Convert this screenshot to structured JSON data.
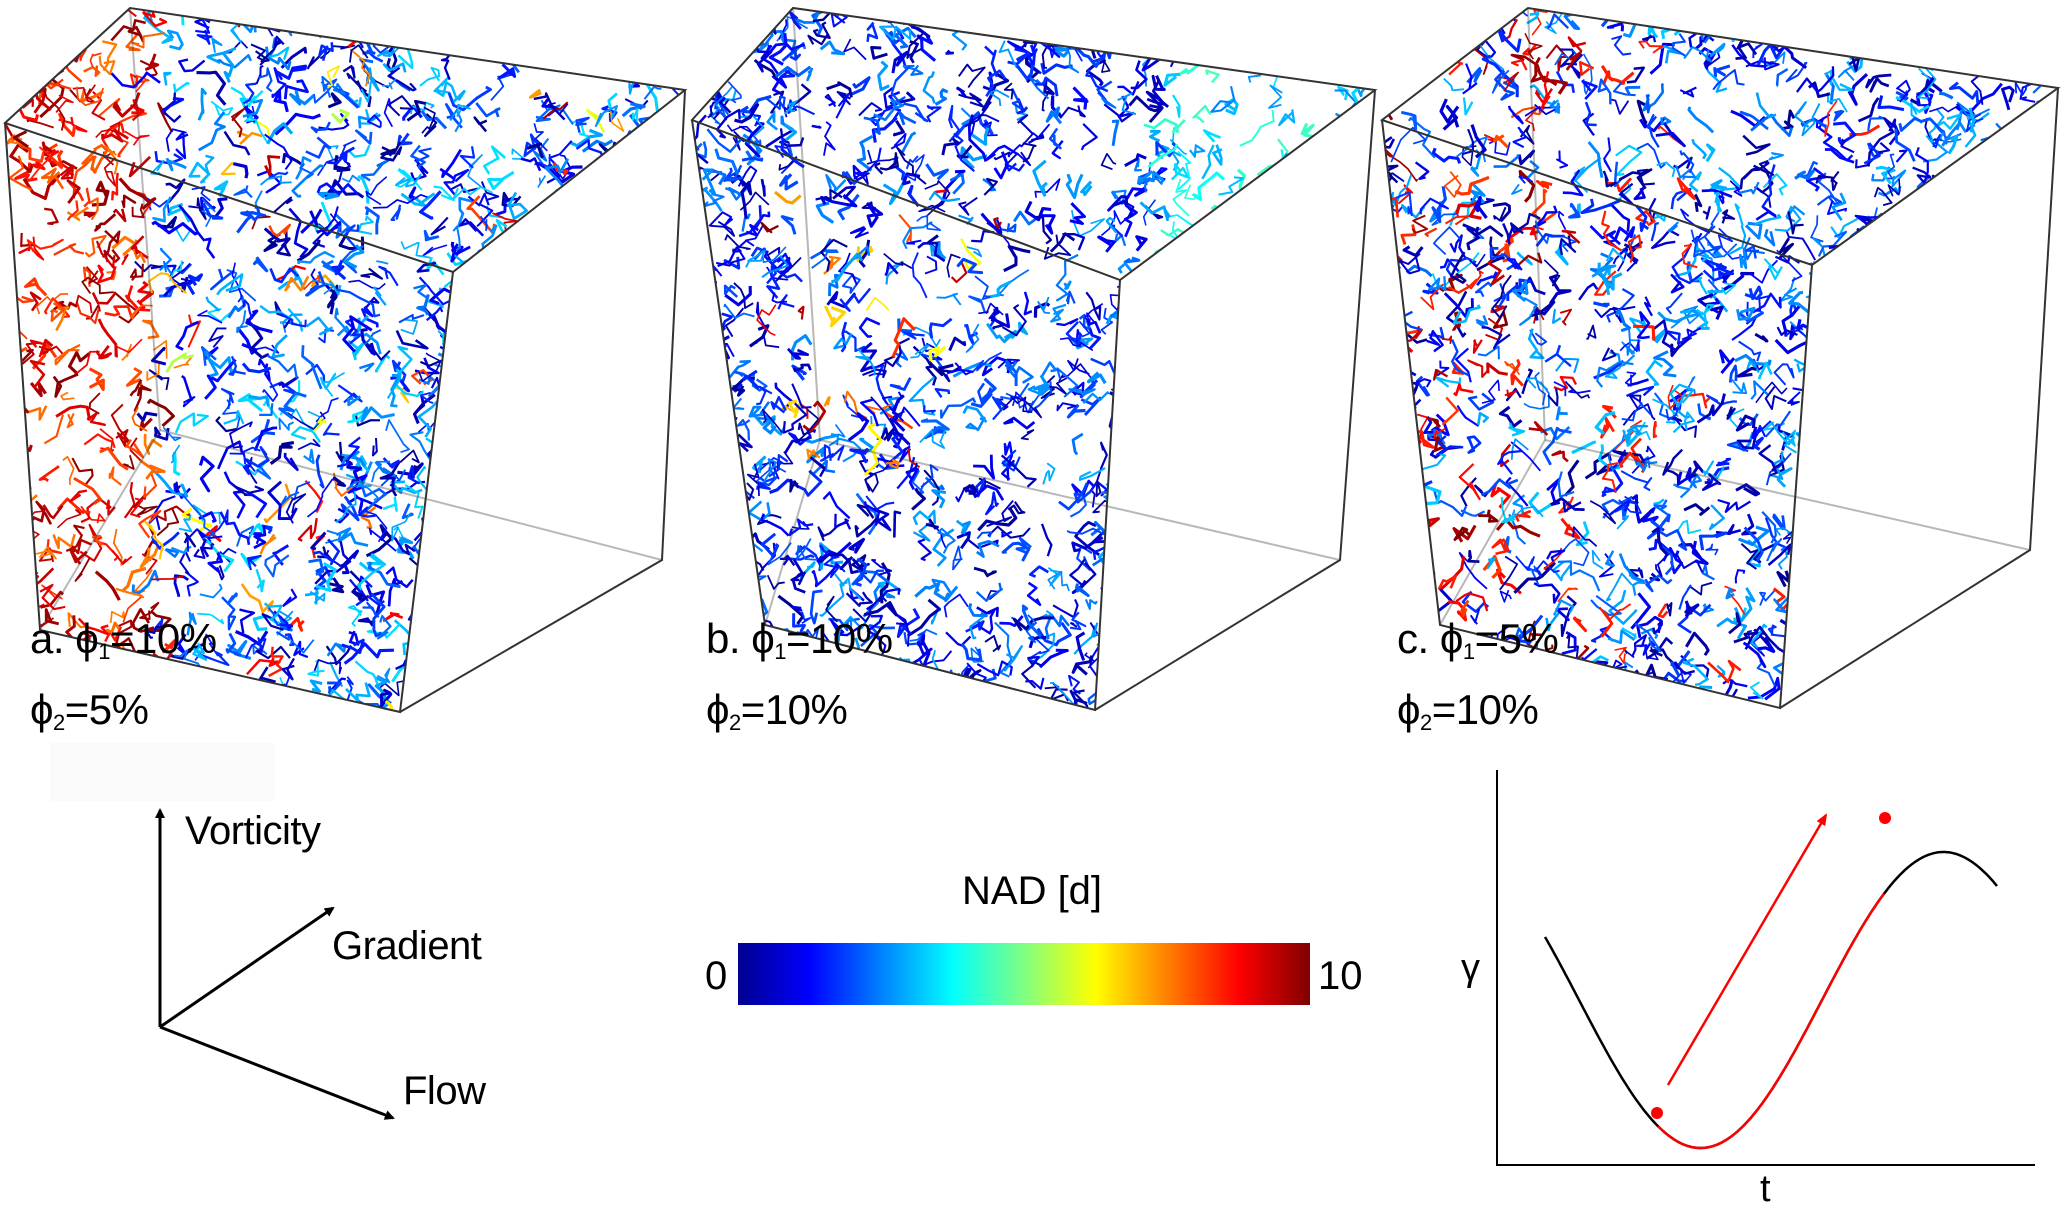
{
  "panels": [
    {
      "id": "a",
      "prefix": "a. ",
      "phi1_sym": "ϕ",
      "phi1_sub": "1",
      "phi1_val": "=10%",
      "phi2_sym": "ϕ",
      "phi2_sub": "2",
      "phi2_val": "=5%",
      "seed": 11,
      "hot_region": "left"
    },
    {
      "id": "b",
      "prefix": "b. ",
      "phi1_sym": "ϕ",
      "phi1_sub": "1",
      "phi1_val": "=10%",
      "phi2_sym": "ϕ",
      "phi2_sub": "2",
      "phi2_val": "=10%",
      "seed": 29,
      "hot_region": "center"
    },
    {
      "id": "c",
      "prefix": "c. ",
      "phi1_sym": "ϕ",
      "phi1_sub": "1",
      "phi1_val": "=5%",
      "phi2_sym": "ϕ",
      "phi2_sub": "2",
      "phi2_val": "=10%",
      "seed": 47,
      "hot_region": "left-center"
    }
  ],
  "axes": {
    "vorticity": "Vorticity",
    "gradient": "Gradient",
    "flow": "Flow"
  },
  "colorbar": {
    "title": "NAD [d]",
    "min_label": "0",
    "max_label": "10",
    "min": 0,
    "max": 10,
    "colormap": "jet",
    "stops": [
      "#00008f",
      "#0000ff",
      "#0080ff",
      "#00ffff",
      "#80ff80",
      "#ffff00",
      "#ff8000",
      "#ff0000",
      "#800000"
    ]
  },
  "strain_plot": {
    "ylabel": "γ",
    "xlabel": "t",
    "curve_color": "#000000",
    "highlight_color": "#ff0000",
    "description_marks": [
      "min point",
      "max point",
      "loading arrow"
    ]
  },
  "colors": {
    "box_edge": "#333333",
    "arrow": "#000000"
  }
}
